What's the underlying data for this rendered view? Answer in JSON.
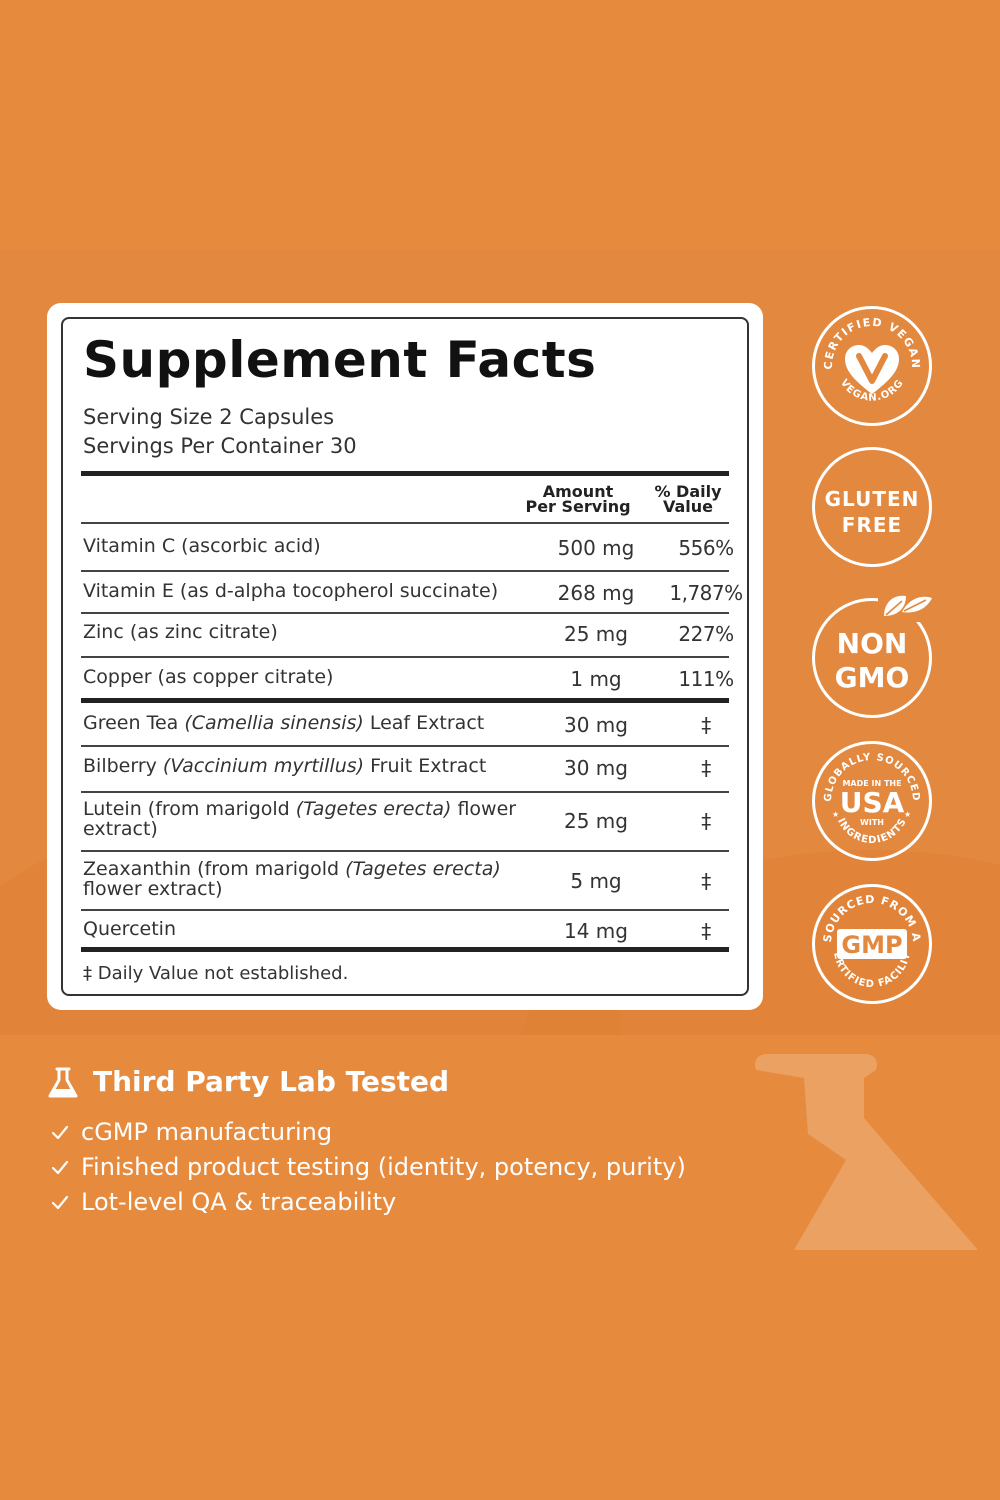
{
  "facts": {
    "title": "Supplement Facts",
    "serving_size": "Serving Size 2 Capsules",
    "servings_per_container": "Servings Per Container 30",
    "header_amount_line1": "Amount",
    "header_amount_line2": "Per Serving",
    "header_dv_line1": "% Daily",
    "header_dv_line2": "Value",
    "rows": [
      {
        "name": "Vitamin C (ascorbic acid)",
        "amount": "500 mg",
        "dv": "556%"
      },
      {
        "name": "Vitamin E (as d-alpha tocopherol succinate)",
        "amount": "268 mg",
        "dv": "1,787%"
      },
      {
        "name": "Zinc (as zinc citrate)",
        "amount": "25 mg",
        "dv": "227%"
      },
      {
        "name": "Copper (as copper citrate)",
        "amount": "1 mg",
        "dv": "111%"
      }
    ],
    "rows2": [
      {
        "name_pre": "Green Tea ",
        "name_ital": "(Camellia sinensis)",
        "name_post": " Leaf Extract",
        "amount": "30 mg",
        "dv": "‡"
      },
      {
        "name_pre": "Bilberry ",
        "name_ital": "(Vaccinium myrtillus)",
        "name_post": " Fruit Extract",
        "amount": "30 mg",
        "dv": "‡"
      },
      {
        "name_pre": "Lutein (from marigold ",
        "name_ital": "(Tagetes erecta)",
        "name_post": " flower",
        "name_line2": "extract)",
        "amount": "25 mg",
        "dv": "‡"
      },
      {
        "name_pre": "Zeaxanthin (from marigold ",
        "name_ital": "(Tagetes erecta)",
        "name_post": "",
        "name_line2": "flower extract)",
        "amount": "5 mg",
        "dv": "‡"
      },
      {
        "name_pre": "Quercetin",
        "name_ital": "",
        "name_post": "",
        "amount": "14 mg",
        "dv": "‡"
      }
    ],
    "footnote": "‡ Daily Value not established."
  },
  "badges": {
    "vegan": {
      "ring_text": "CERTIFIED VEGAN",
      "bottom_text": "VEGAN.ORG",
      "icon": "heart-v-icon"
    },
    "gluten": {
      "line1": "GLUTEN",
      "line2": "FREE"
    },
    "nongmo": {
      "line1": "NON",
      "line2": "GMO",
      "icon": "leaf-icon"
    },
    "usa": {
      "ring_top": "GLOBALLY SOURCED",
      "small_top": "MADE IN THE",
      "big": "USA",
      "small_bottom": "WITH",
      "ring_bottom": "INGREDIENTS"
    },
    "gmp": {
      "ring_top": "SOURCED FROM A",
      "big": "GMP",
      "ring_bottom": "CERTIFIED FACILITY"
    }
  },
  "lab": {
    "title": "Third Party Lab Tested",
    "icon": "flask-icon",
    "bullets": [
      "cGMP manufacturing",
      "Finished product testing (identity, potency, purity)",
      "Lot-level QA & traceability"
    ]
  },
  "colors": {
    "background": "#e68a3e",
    "panel": "#ffffff",
    "text": "#222222"
  }
}
